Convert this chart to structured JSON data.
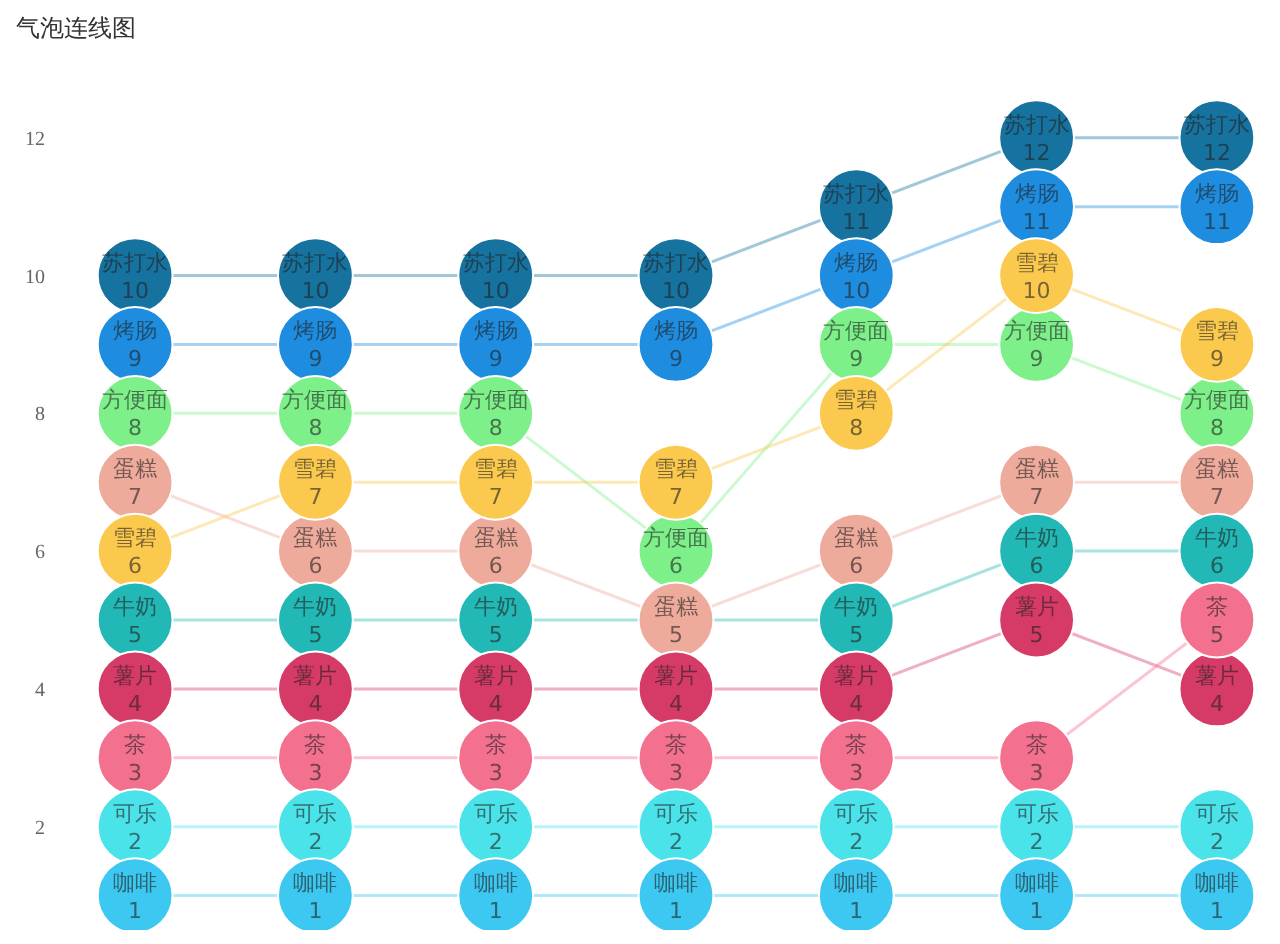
{
  "chart_data": {
    "type": "line",
    "title": "气泡连线图",
    "categories": [
      null,
      null,
      null,
      null,
      null,
      null,
      null
    ],
    "series": [
      {
        "name": "苏打水",
        "color": "#16729f",
        "values": [
          10,
          10,
          10,
          10,
          11,
          12,
          12
        ]
      },
      {
        "name": "烤肠",
        "color": "#1e8de0",
        "values": [
          9,
          9,
          9,
          9,
          10,
          11,
          11
        ]
      },
      {
        "name": "方便面",
        "color": "#7df08a",
        "values": [
          8,
          8,
          8,
          6,
          9,
          9,
          8
        ]
      },
      {
        "name": "蛋糕",
        "color": "#eeaa9b",
        "values": [
          7,
          6,
          6,
          5,
          6,
          7,
          7
        ]
      },
      {
        "name": "雪碧",
        "color": "#fbc94d",
        "values": [
          6,
          7,
          7,
          7,
          8,
          10,
          9
        ]
      },
      {
        "name": "牛奶",
        "color": "#22b8b5",
        "values": [
          5,
          5,
          5,
          null,
          5,
          6,
          6
        ]
      },
      {
        "name": "薯片",
        "color": "#d63a66",
        "values": [
          4,
          4,
          4,
          4,
          4,
          5,
          4
        ]
      },
      {
        "name": "茶",
        "color": "#f4708f",
        "values": [
          3,
          3,
          3,
          3,
          3,
          3,
          5
        ]
      },
      {
        "name": "可乐",
        "color": "#4be3ea",
        "values": [
          2,
          2,
          2,
          2,
          2,
          2,
          2
        ]
      },
      {
        "name": "咖啡",
        "color": "#3cc8f0",
        "values": [
          1,
          1,
          1,
          1,
          1,
          1,
          1
        ]
      }
    ],
    "ylim": [
      0.5,
      14
    ],
    "yticks": [
      2,
      4,
      6,
      8,
      10,
      12
    ],
    "tick_labels": "y",
    "legend": false,
    "marker": "circle",
    "data_labels": true
  }
}
